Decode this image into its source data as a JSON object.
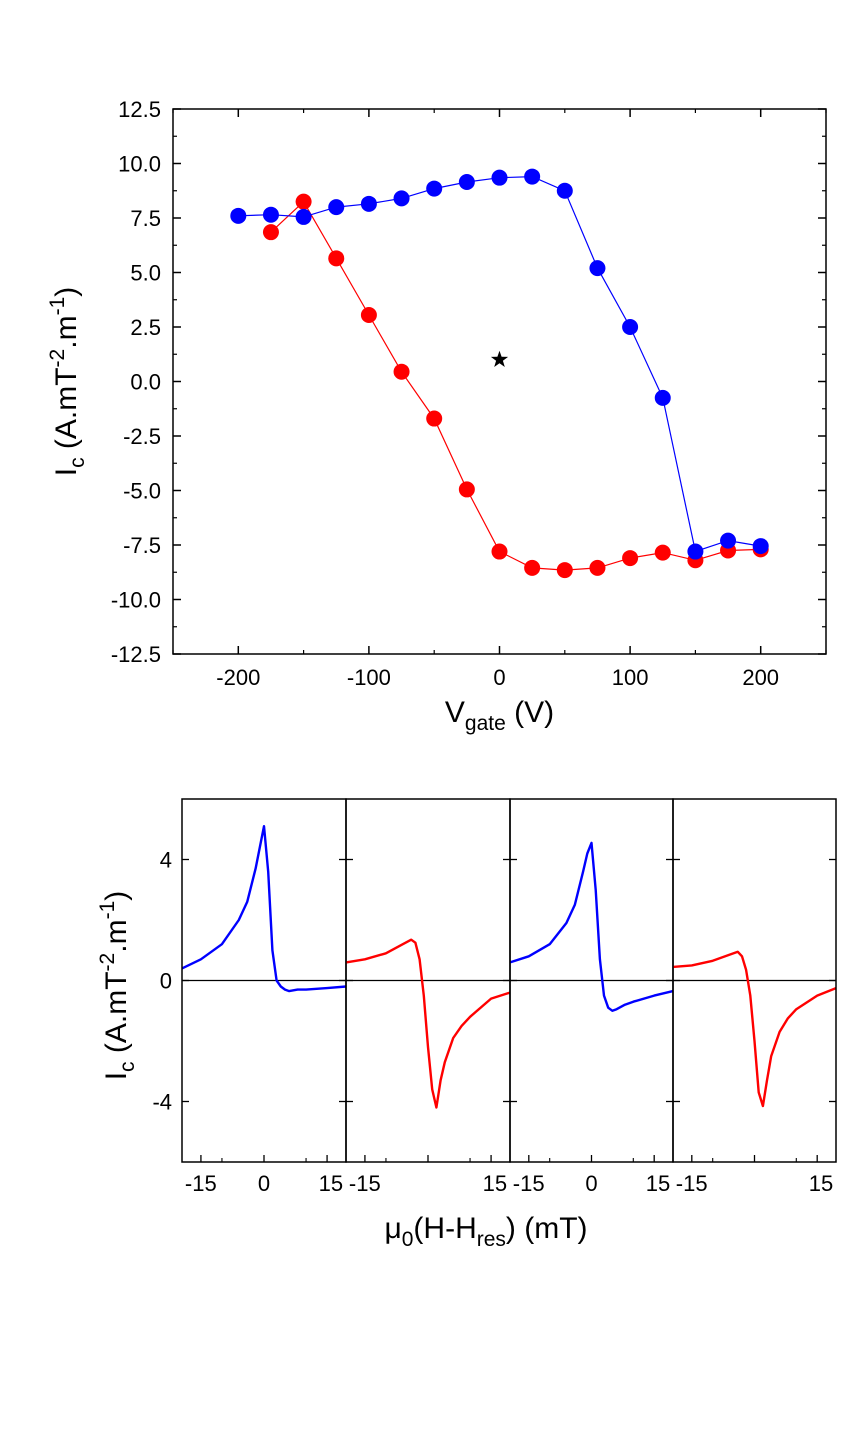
{
  "colors": {
    "sweep_down": "#ff0000",
    "sweep_up": "#0000ff",
    "marker": "#000000",
    "axes": "#000000",
    "background": "#ffffff"
  },
  "chart_data": [
    {
      "type": "scatter",
      "panel": "top",
      "xlabel": {
        "main": "V",
        "sub": "gate",
        "tail": " (V)"
      },
      "ylabel": {
        "main": "I",
        "sub": "c",
        "tail": " (A.mT",
        "sup1": "-2",
        "mid": ".m",
        "sup2": "-1",
        "end": ")"
      },
      "xlim": [
        -250,
        250
      ],
      "ylim": [
        -12.5,
        12.5
      ],
      "xticks": [
        -200,
        -100,
        0,
        100,
        200
      ],
      "xtick_labels": [
        "-200",
        "-100",
        "0",
        "100",
        "200"
      ],
      "yticks": [
        -12.5,
        -10,
        -7.5,
        -5,
        -2.5,
        0,
        2.5,
        5,
        7.5,
        10,
        12.5
      ],
      "ytick_labels": [
        "-12.5",
        "-10.0",
        "-7.5",
        "-5.0",
        "-2.5",
        "0.0",
        "2.5",
        "5.0",
        "7.5",
        "10.0",
        "12.5"
      ],
      "grid": false,
      "connected": true,
      "series": [
        {
          "color": "#ff0000",
          "x": [
            -175,
            -150,
            -125,
            -100,
            -75,
            -50,
            -25,
            0,
            25,
            50,
            75,
            100,
            125,
            150,
            175,
            200
          ],
          "y": [
            6.85,
            8.25,
            5.65,
            3.05,
            0.45,
            -1.7,
            -4.95,
            -7.8,
            -8.55,
            -8.65,
            -8.55,
            -8.1,
            -7.85,
            -8.2,
            -7.75,
            -7.7
          ]
        },
        {
          "color": "#0000ff",
          "x": [
            -200,
            -175,
            -150,
            -125,
            -100,
            -75,
            -50,
            -25,
            0,
            25,
            50,
            75,
            100,
            125,
            150,
            175,
            200
          ],
          "y": [
            7.6,
            7.65,
            7.55,
            8.0,
            8.15,
            8.4,
            8.85,
            9.15,
            9.35,
            9.4,
            8.75,
            5.2,
            2.5,
            -0.75,
            -7.8,
            -7.3,
            -7.55
          ]
        }
      ],
      "annotations": [
        {
          "marker": "star",
          "x": 0,
          "y": 1.0
        }
      ]
    },
    {
      "type": "line",
      "panel": "bottom",
      "xlabel": {
        "pre": "μ",
        "sub1": "0",
        "mid": "(H-H",
        "sub2": "res",
        "tail": ") (mT)"
      },
      "ylabel": {
        "main": "I",
        "sub": "c",
        "tail": " (A.mT",
        "sup1": "-2",
        "mid": ".m",
        "sup2": "-1",
        "end": ")"
      },
      "ylim": [
        -6,
        6
      ],
      "yticks": [
        -4,
        0,
        4
      ],
      "ytick_labels": [
        "-4",
        "0",
        "4"
      ],
      "zero_line": true,
      "grid": false,
      "subplots": [
        {
          "color": "#0000ff",
          "xlim": [
            -19.5,
            19.5
          ],
          "xticks": [
            -15,
            0,
            15
          ],
          "xtick_labels": [
            "-15",
            "0",
            "15"
          ],
          "x": [
            -19.5,
            -15,
            -10,
            -6,
            -4,
            -2,
            -1,
            0,
            1,
            2,
            3,
            4,
            5,
            6,
            8,
            10,
            15,
            19.5
          ],
          "y": [
            0.4,
            0.7,
            1.2,
            2.0,
            2.6,
            3.7,
            4.4,
            5.1,
            3.6,
            1.0,
            0.0,
            -0.2,
            -0.3,
            -0.35,
            -0.3,
            -0.3,
            -0.25,
            -0.2
          ]
        },
        {
          "color": "#ff0000",
          "xlim": [
            -19.5,
            19.5
          ],
          "xticks": [
            -15,
            0,
            15
          ],
          "xtick_labels": [
            "-15",
            "",
            "15"
          ],
          "x": [
            -19.5,
            -15,
            -10,
            -6,
            -4,
            -3,
            -2,
            -1,
            0,
            1,
            2,
            3,
            4,
            6,
            8,
            10,
            15,
            19.5
          ],
          "y": [
            0.6,
            0.7,
            0.9,
            1.2,
            1.35,
            1.25,
            0.7,
            -0.5,
            -2.2,
            -3.6,
            -4.2,
            -3.3,
            -2.7,
            -1.9,
            -1.5,
            -1.2,
            -0.6,
            -0.4
          ]
        },
        {
          "color": "#0000ff",
          "xlim": [
            -19.5,
            19.5
          ],
          "xticks": [
            -15,
            0,
            15
          ],
          "xtick_labels": [
            "-15",
            "0",
            "15"
          ],
          "x": [
            -19.5,
            -15,
            -10,
            -6,
            -4,
            -2,
            -1,
            0,
            1,
            2,
            3,
            4,
            5,
            6,
            8,
            10,
            15,
            19.5
          ],
          "y": [
            0.6,
            0.8,
            1.2,
            1.9,
            2.5,
            3.6,
            4.2,
            4.55,
            3.0,
            0.7,
            -0.5,
            -0.9,
            -1.0,
            -0.95,
            -0.8,
            -0.7,
            -0.5,
            -0.35
          ]
        },
        {
          "color": "#ff0000",
          "xlim": [
            -19.5,
            19.5
          ],
          "xticks": [
            -15,
            0,
            15
          ],
          "xtick_labels": [
            "-15",
            "",
            "15"
          ],
          "x": [
            -19.5,
            -15,
            -10,
            -6,
            -4,
            -3,
            -2,
            -1,
            0,
            1,
            2,
            3,
            4,
            6,
            8,
            10,
            15,
            19.5
          ],
          "y": [
            0.45,
            0.5,
            0.65,
            0.85,
            0.95,
            0.8,
            0.35,
            -0.5,
            -2.0,
            -3.7,
            -4.15,
            -3.3,
            -2.5,
            -1.7,
            -1.25,
            -0.95,
            -0.5,
            -0.25
          ]
        }
      ]
    }
  ]
}
